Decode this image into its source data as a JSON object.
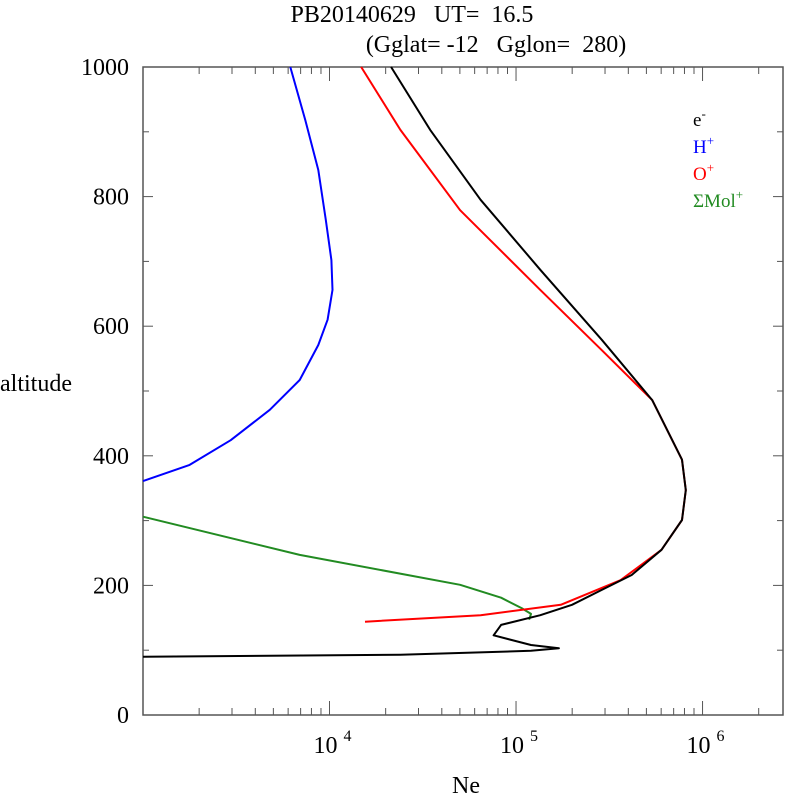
{
  "chart_data": {
    "type": "line",
    "title": "PB20140629   UT=  16.5",
    "subtitle": "(Gglat= -12   Gglon=  280)",
    "xlabel": "Ne",
    "ylabel": "altitude",
    "xscale": "log",
    "xlim": [
      1000,
      2700000
    ],
    "ylim": [
      0,
      1000
    ],
    "xticks": [
      {
        "value": 10000,
        "base": "10",
        "exp": "4"
      },
      {
        "value": 100000,
        "base": "10",
        "exp": "5"
      },
      {
        "value": 1000000,
        "base": "10",
        "exp": "6"
      }
    ],
    "yticks": [
      "0",
      "200",
      "400",
      "600",
      "800",
      "1000"
    ],
    "legend_position": "top-right",
    "series": [
      {
        "name": "e-",
        "label": "e",
        "sup": "-",
        "color": "#000000",
        "log10_x": [
          4.33,
          4.54,
          4.81,
          5.13,
          5.46,
          5.73,
          5.89,
          5.91,
          5.89,
          5.78,
          5.62,
          5.46,
          5.3,
          5.13,
          4.92,
          4.88,
          5.08,
          5.23,
          5.08,
          4.38,
          3.0
        ],
        "altitude": [
          1000,
          903,
          795,
          687,
          579,
          486,
          394,
          347,
          301,
          255,
          216,
          193,
          170,
          154,
          139,
          123,
          108,
          103,
          99,
          93,
          90
        ]
      },
      {
        "name": "H+",
        "label": "H",
        "sup": "+",
        "color": "#0000ff",
        "log10_x": [
          3.79,
          3.87,
          3.94,
          3.98,
          4.01,
          4.016,
          3.99,
          3.94,
          3.84,
          3.68,
          3.47,
          3.25,
          3.0
        ],
        "altitude": [
          1000,
          918,
          841,
          764,
          702,
          656,
          610,
          571,
          517,
          471,
          424,
          386,
          361
        ]
      },
      {
        "name": "O+",
        "label": "O",
        "sup": "+",
        "color": "#ff0000",
        "log10_x": [
          4.17,
          4.38,
          4.7,
          5.13,
          5.46,
          5.73,
          5.89,
          5.91,
          5.89,
          5.78,
          5.56,
          5.24,
          4.81,
          4.19
        ],
        "altitude": [
          1000,
          903,
          779,
          656,
          563,
          486,
          394,
          347,
          301,
          255,
          208,
          170,
          154,
          144
        ]
      },
      {
        "name": "ΣMol+",
        "label": "ΣMol",
        "sup": "+",
        "color": "#228b22",
        "log10_x": [
          3.0,
          3.84,
          4.7,
          4.92,
          5.03,
          5.08,
          5.07
        ],
        "altitude": [
          306,
          247,
          201,
          181,
          165,
          156,
          147
        ]
      }
    ]
  }
}
